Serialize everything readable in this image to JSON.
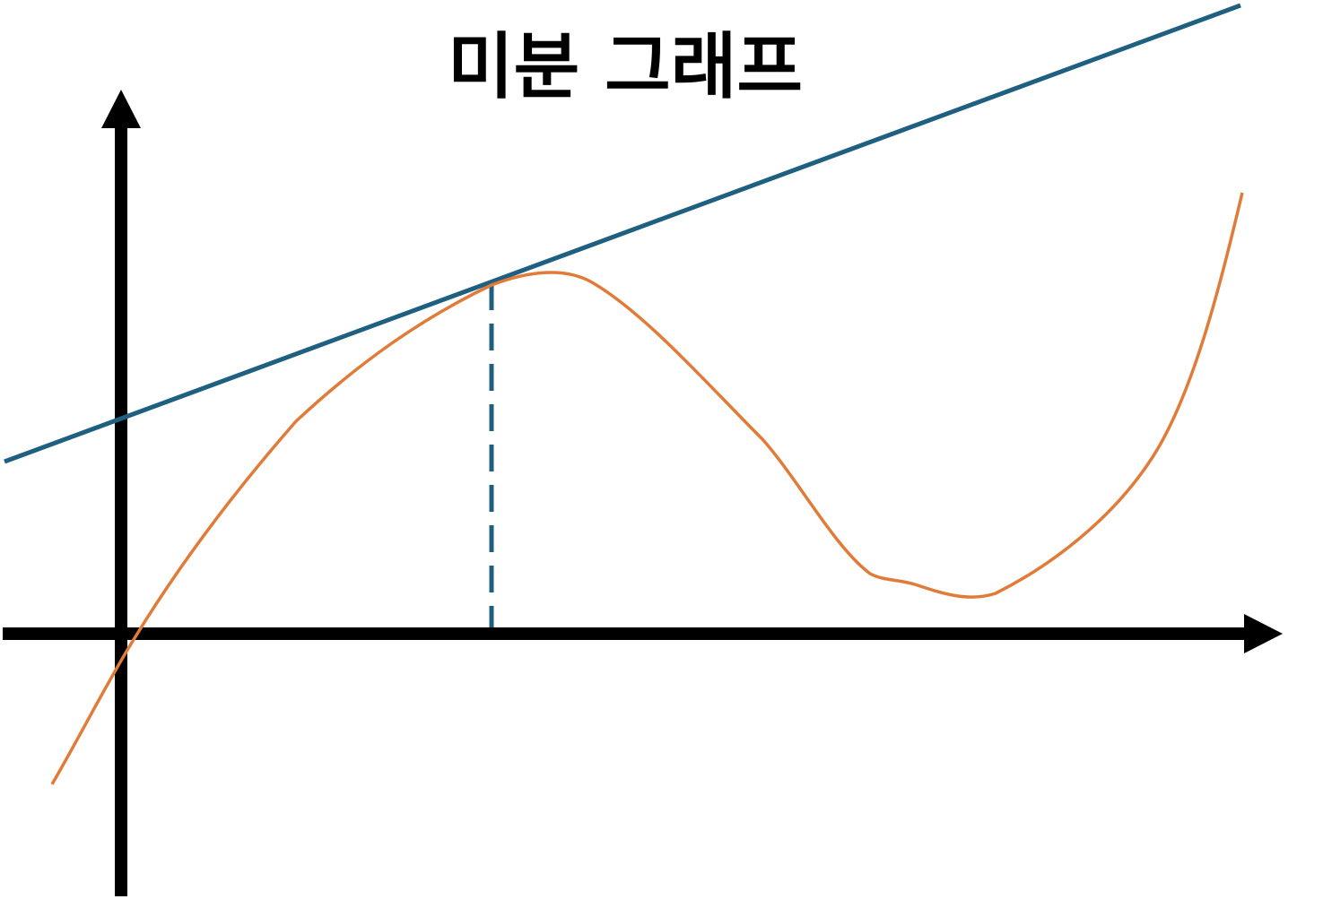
{
  "header": {
    "title": "미분 그래프"
  }
}
